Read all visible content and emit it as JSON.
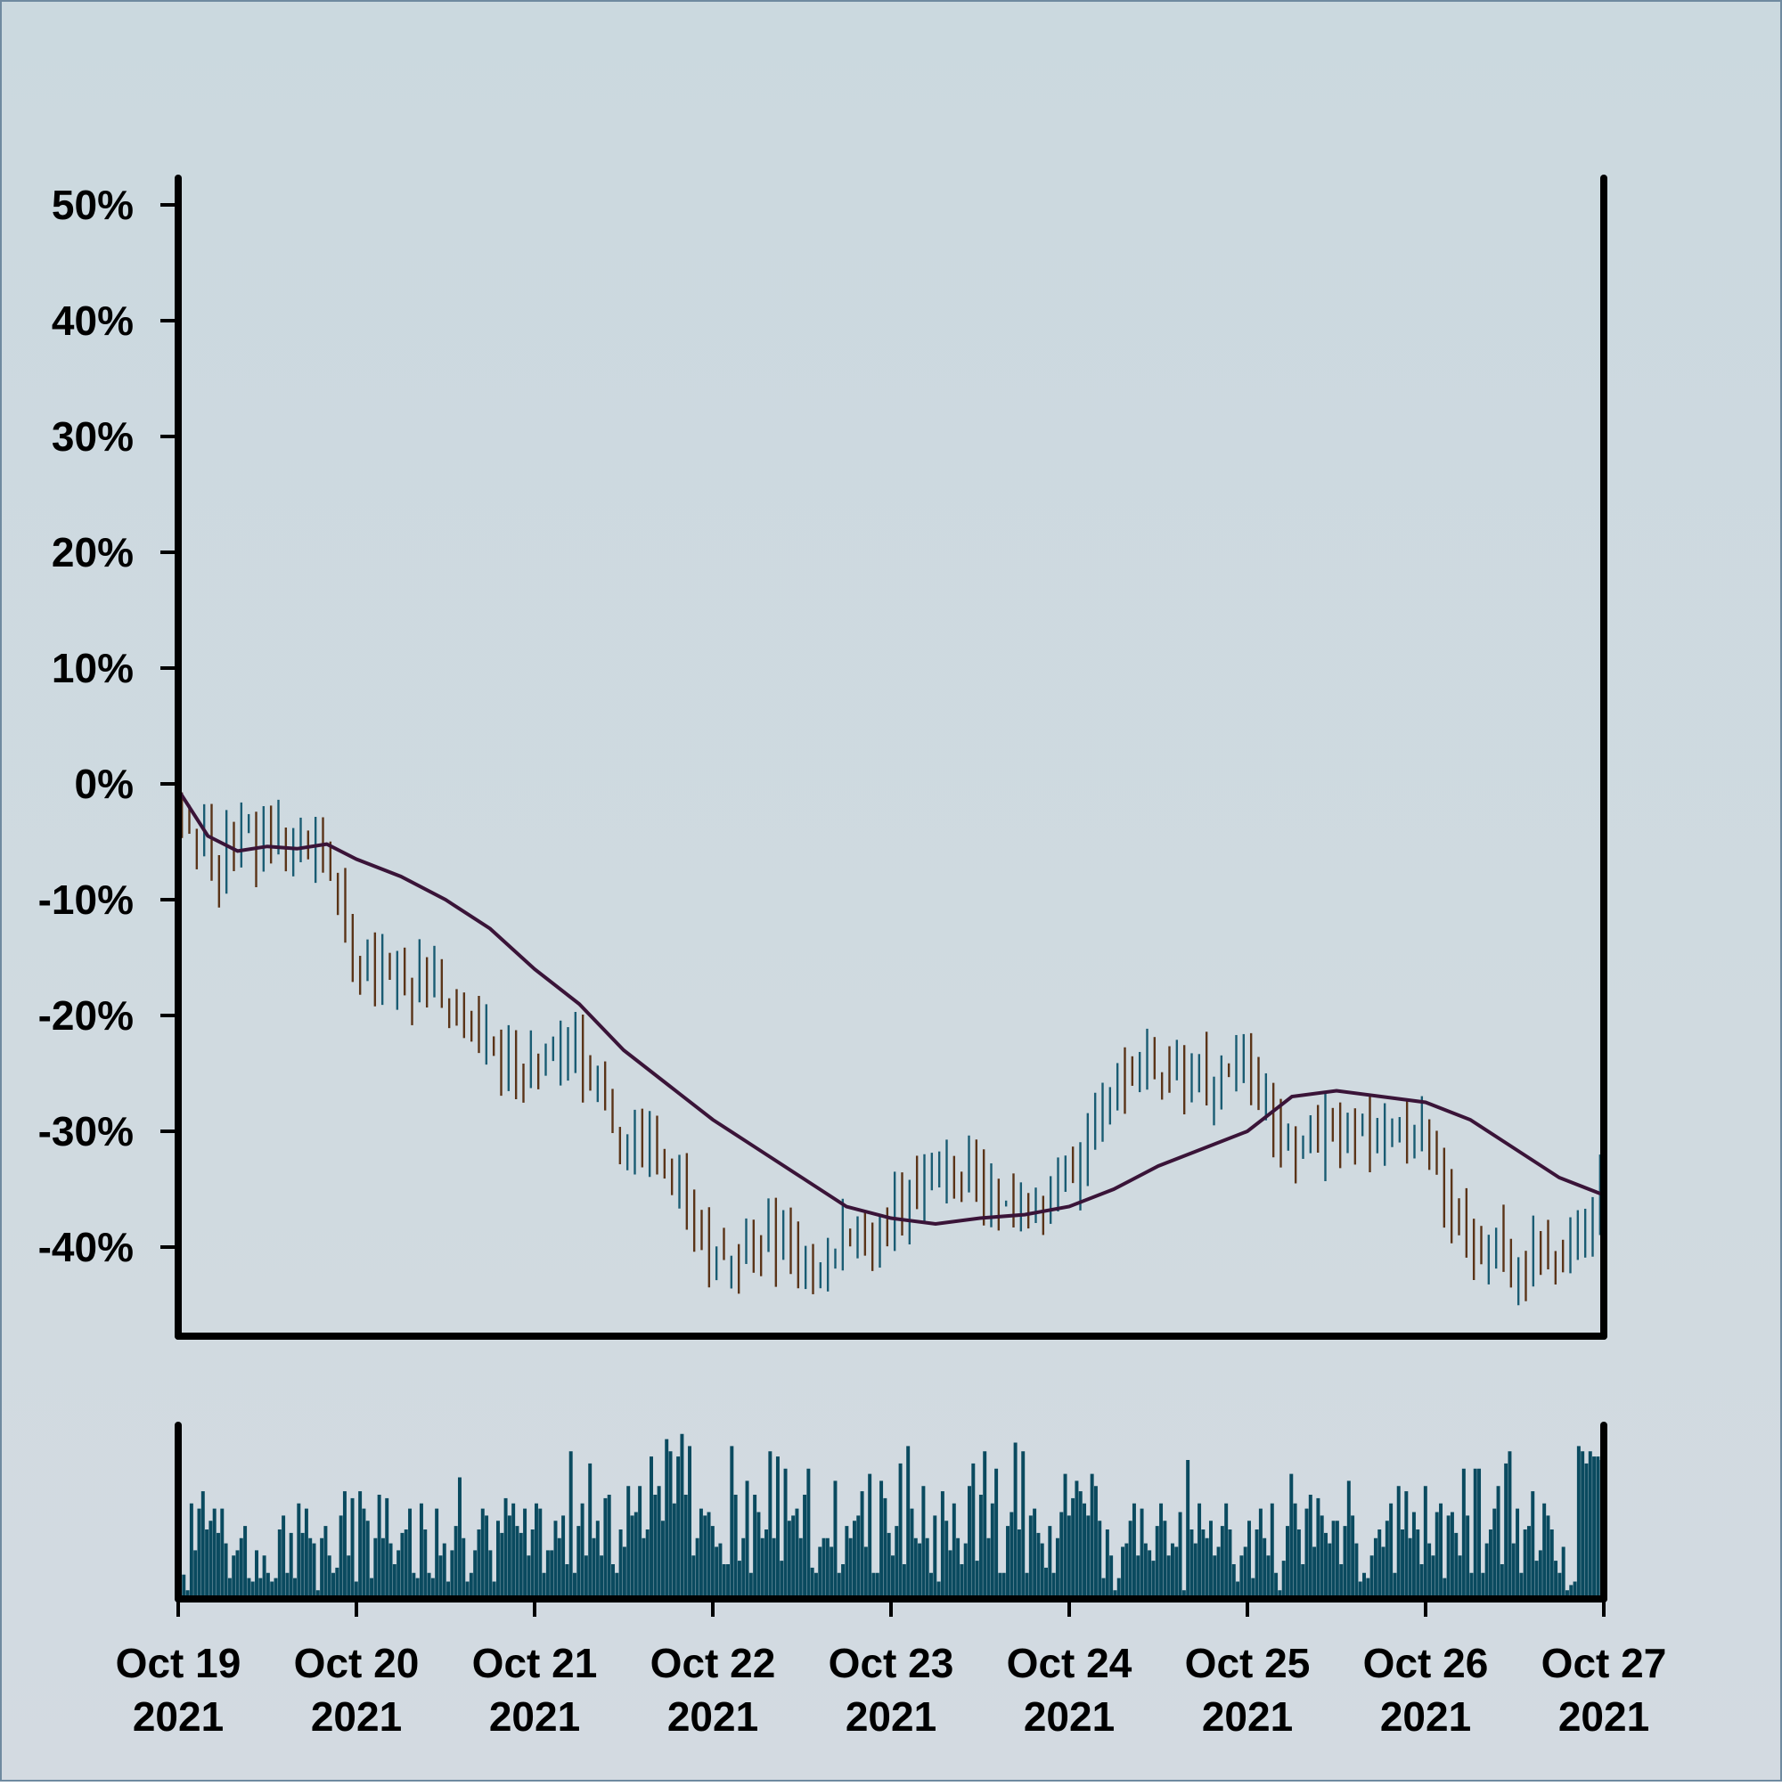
{
  "chart_data": {
    "type": "ohlc",
    "colors": {
      "up": "#1a5c73",
      "down": "#5a3418",
      "moving_average": "#3a1438",
      "volume": "#0a4a5f",
      "axes": "#000000",
      "background_top": "#cbd9df",
      "background_bottom": "#d3dae1"
    },
    "y_axis": {
      "unit": "percent",
      "ylim": [
        -47,
        52
      ],
      "ticks": [
        50,
        40,
        30,
        20,
        10,
        0,
        -10,
        -20,
        -30,
        -40
      ],
      "tick_labels": [
        "50%",
        "40%",
        "30%",
        "20%",
        "10%",
        "0%",
        "-10%",
        "-20%",
        "-30%",
        "-40%"
      ]
    },
    "x_axis": {
      "start": "2021-10-19T00:00",
      "end": "2021-10-27T00:00",
      "ticks": [
        {
          "date": "2021-10-19",
          "line1": "Oct 19",
          "line2": "2021"
        },
        {
          "date": "2021-10-20",
          "line1": "Oct 20",
          "line2": "2021"
        },
        {
          "date": "2021-10-21",
          "line1": "Oct 21",
          "line2": "2021"
        },
        {
          "date": "2021-10-22",
          "line1": "Oct 22",
          "line2": "2021"
        },
        {
          "date": "2021-10-23",
          "line1": "Oct 23",
          "line2": "2021"
        },
        {
          "date": "2021-10-24",
          "line1": "Oct 24",
          "line2": "2021"
        },
        {
          "date": "2021-10-25",
          "line1": "Oct 25",
          "line2": "2021"
        },
        {
          "date": "2021-10-26",
          "line1": "Oct 26",
          "line2": "2021"
        },
        {
          "date": "2021-10-27",
          "line1": "Oct 27",
          "line2": "2021"
        }
      ]
    },
    "bar_interval_hours": 1,
    "close_anchors": [
      {
        "t": "2021-10-19T00:00",
        "v": -1
      },
      {
        "t": "2021-10-19T05:00",
        "v": -7
      },
      {
        "t": "2021-10-19T10:00",
        "v": -5
      },
      {
        "t": "2021-10-19T17:00",
        "v": -5
      },
      {
        "t": "2021-10-19T20:00",
        "v": -5
      },
      {
        "t": "2021-10-20T00:00",
        "v": -15
      },
      {
        "t": "2021-10-20T12:00",
        "v": -18
      },
      {
        "t": "2021-10-20T19:00",
        "v": -24
      },
      {
        "t": "2021-10-21T00:00",
        "v": -25
      },
      {
        "t": "2021-10-21T06:00",
        "v": -23
      },
      {
        "t": "2021-10-21T12:00",
        "v": -31
      },
      {
        "t": "2021-10-21T19:00",
        "v": -33
      },
      {
        "t": "2021-10-22T00:00",
        "v": -42
      },
      {
        "t": "2021-10-22T07:00",
        "v": -39
      },
      {
        "t": "2021-10-22T13:00",
        "v": -42
      },
      {
        "t": "2021-10-22T17:00",
        "v": -40
      },
      {
        "t": "2021-10-23T00:00",
        "v": -38
      },
      {
        "t": "2021-10-23T06:00",
        "v": -33
      },
      {
        "t": "2021-10-23T12:00",
        "v": -34
      },
      {
        "t": "2021-10-23T17:00",
        "v": -37
      },
      {
        "t": "2021-10-24T00:00",
        "v": -34
      },
      {
        "t": "2021-10-24T06:00",
        "v": -27
      },
      {
        "t": "2021-10-24T13:00",
        "v": -24
      },
      {
        "t": "2021-10-24T19:00",
        "v": -26
      },
      {
        "t": "2021-10-25T00:00",
        "v": -24
      },
      {
        "t": "2021-10-25T06:00",
        "v": -31
      },
      {
        "t": "2021-10-25T12:00",
        "v": -30
      },
      {
        "t": "2021-10-25T18:00",
        "v": -31
      },
      {
        "t": "2021-10-26T00:00",
        "v": -30
      },
      {
        "t": "2021-10-26T06:00",
        "v": -39
      },
      {
        "t": "2021-10-26T12:00",
        "v": -41
      },
      {
        "t": "2021-10-26T18:00",
        "v": -42
      },
      {
        "t": "2021-10-26T22:00",
        "v": -39
      },
      {
        "t": "2021-10-27T00:00",
        "v": -34
      }
    ],
    "moving_average": [
      {
        "t": "2021-10-19T00:00",
        "v": -0.5
      },
      {
        "t": "2021-10-19T04:00",
        "v": -4.5
      },
      {
        "t": "2021-10-19T08:00",
        "v": -5.8
      },
      {
        "t": "2021-10-19T12:00",
        "v": -5.4
      },
      {
        "t": "2021-10-19T16:00",
        "v": -5.6
      },
      {
        "t": "2021-10-19T20:00",
        "v": -5.2
      },
      {
        "t": "2021-10-20T00:00",
        "v": -6.5
      },
      {
        "t": "2021-10-20T06:00",
        "v": -8
      },
      {
        "t": "2021-10-20T12:00",
        "v": -10
      },
      {
        "t": "2021-10-20T18:00",
        "v": -12.5
      },
      {
        "t": "2021-10-21T00:00",
        "v": -16
      },
      {
        "t": "2021-10-21T06:00",
        "v": -19
      },
      {
        "t": "2021-10-21T12:00",
        "v": -23
      },
      {
        "t": "2021-10-21T18:00",
        "v": -26
      },
      {
        "t": "2021-10-22T00:00",
        "v": -29
      },
      {
        "t": "2021-10-22T06:00",
        "v": -31.5
      },
      {
        "t": "2021-10-22T12:00",
        "v": -34
      },
      {
        "t": "2021-10-22T18:00",
        "v": -36.5
      },
      {
        "t": "2021-10-23T00:00",
        "v": -37.5
      },
      {
        "t": "2021-10-23T06:00",
        "v": -38
      },
      {
        "t": "2021-10-23T12:00",
        "v": -37.5
      },
      {
        "t": "2021-10-23T18:00",
        "v": -37.2
      },
      {
        "t": "2021-10-24T00:00",
        "v": -36.5
      },
      {
        "t": "2021-10-24T06:00",
        "v": -35
      },
      {
        "t": "2021-10-24T12:00",
        "v": -33
      },
      {
        "t": "2021-10-24T18:00",
        "v": -31.5
      },
      {
        "t": "2021-10-25T00:00",
        "v": -30
      },
      {
        "t": "2021-10-25T06:00",
        "v": -27
      },
      {
        "t": "2021-10-25T12:00",
        "v": -26.5
      },
      {
        "t": "2021-10-25T18:00",
        "v": -27
      },
      {
        "t": "2021-10-26T00:00",
        "v": -27.5
      },
      {
        "t": "2021-10-26T06:00",
        "v": -29
      },
      {
        "t": "2021-10-26T12:00",
        "v": -31.5
      },
      {
        "t": "2021-10-26T18:00",
        "v": -34
      },
      {
        "t": "2021-10-27T00:00",
        "v": -35.5
      }
    ],
    "volume": {
      "ylim": [
        0,
        100
      ],
      "values": [
        12,
        14,
        5,
        55,
        28,
        52,
        62,
        40,
        45,
        52,
        38,
        52,
        32,
        12,
        25,
        28,
        35,
        42,
        12,
        10,
        28,
        12,
        25,
        15,
        10,
        12,
        40,
        48,
        15,
        38,
        12,
        55,
        38,
        52,
        35,
        32,
        5,
        35,
        42,
        25,
        15,
        18,
        48,
        62,
        25,
        58,
        10,
        62,
        52,
        45,
        12,
        35,
        60,
        35,
        58,
        32,
        20,
        28,
        38,
        40,
        52,
        15,
        12,
        55,
        40,
        15,
        12,
        52,
        25,
        32,
        10,
        28,
        42,
        70,
        35,
        10,
        15,
        28,
        40,
        52,
        48,
        28,
        10,
        45,
        38,
        58,
        48,
        55,
        42,
        38,
        52,
        25,
        40,
        55,
        52,
        15,
        28,
        28,
        45,
        35,
        48,
        20,
        85,
        15,
        42,
        55,
        25,
        78,
        35,
        45,
        25,
        58,
        60,
        20,
        15,
        40,
        30,
        65,
        48,
        50,
        65,
        35,
        40,
        82,
        60,
        65,
        45,
        92,
        85,
        55,
        82,
        95,
        60,
        88,
        25,
        35,
        52,
        48,
        50,
        42,
        30,
        32,
        20,
        20,
        88,
        60,
        22,
        35,
        68,
        15,
        60,
        50,
        35,
        40,
        85,
        35,
        82,
        22,
        75,
        45,
        48,
        52,
        35,
        60,
        75,
        18,
        15,
        30,
        35,
        35,
        30,
        68,
        15,
        20,
        42,
        35,
        45,
        48,
        62,
        30,
        72,
        15,
        15,
        68,
        58,
        38,
        25,
        42,
        78,
        20,
        88,
        52,
        35,
        32,
        65,
        35,
        15,
        48,
        10,
        62,
        45,
        28,
        55,
        35,
        20,
        32,
        65,
        78,
        22,
        60,
        85,
        35,
        55,
        75,
        15,
        15,
        42,
        50,
        90,
        40,
        85,
        15,
        48,
        52,
        38,
        32,
        18,
        42,
        15,
        35,
        50,
        72,
        48,
        58,
        68,
        62,
        55,
        48,
        72,
        65,
        45,
        12,
        40,
        25,
        5,
        12,
        30,
        32,
        45,
        55,
        25,
        52,
        32,
        28,
        22,
        42,
        55,
        45,
        25,
        32,
        30,
        50,
        5,
        80,
        40,
        32,
        55,
        40,
        35,
        45,
        25,
        30,
        42,
        55,
        40,
        20,
        10,
        25,
        30,
        45,
        12,
        40,
        52,
        35,
        25,
        55,
        15,
        5,
        22,
        42,
        72,
        55,
        40,
        20,
        52,
        60,
        30,
        58,
        48,
        38,
        32,
        45,
        45,
        20,
        42,
        68,
        48,
        32,
        10,
        15,
        12,
        25,
        35,
        40,
        30,
        45,
        55,
        15,
        65,
        40,
        62,
        35,
        50,
        40,
        20,
        65,
        32,
        25,
        50,
        55,
        12,
        48,
        50,
        38,
        25,
        75,
        48,
        15,
        75,
        75,
        15,
        32,
        40,
        52,
        65,
        20,
        78,
        85,
        32,
        52,
        15,
        40,
        42,
        62,
        22,
        28,
        55,
        48,
        40,
        22,
        15,
        30,
        5,
        8,
        10,
        88,
        85,
        78,
        85,
        82,
        82,
        80
      ]
    }
  }
}
